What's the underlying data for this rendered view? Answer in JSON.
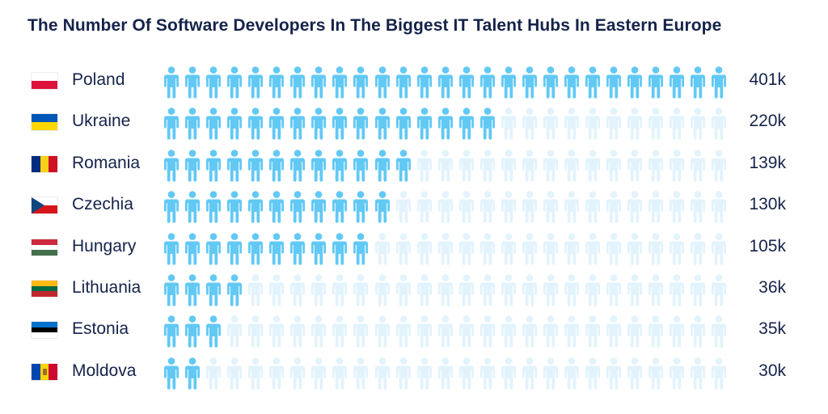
{
  "title": "The Number Of Software Developers In The Biggest IT Talent Hubs In Eastern Europe",
  "colors": {
    "active": "#62c9f5",
    "inactive": "#e2f3fc",
    "text": "#15234a"
  },
  "icons_per_row": 27,
  "chart_data": {
    "type": "bar",
    "title": "The Number Of Software Developers In The Biggest IT Talent Hubs In Eastern Europe",
    "categories": [
      "Poland",
      "Ukraine",
      "Romania",
      "Czechia",
      "Hungary",
      "Lithuania",
      "Estonia",
      "Moldova"
    ],
    "values": [
      401,
      220,
      139,
      130,
      105,
      36,
      35,
      30
    ],
    "value_labels": [
      "401k",
      "220k",
      "139k",
      "130k",
      "105k",
      "36k",
      "35k",
      "30k"
    ],
    "filled_icons": [
      27,
      16,
      12,
      11,
      10,
      4,
      3,
      2
    ],
    "xlabel": "",
    "ylabel": ""
  },
  "rows": [
    {
      "country": "Poland",
      "value": "401k",
      "filled": 27,
      "flag": "poland-flag-icon"
    },
    {
      "country": "Ukraine",
      "value": "220k",
      "filled": 16,
      "flag": "ukraine-flag-icon"
    },
    {
      "country": "Romania",
      "value": "139k",
      "filled": 12,
      "flag": "romania-flag-icon"
    },
    {
      "country": "Czechia",
      "value": "130k",
      "filled": 11,
      "flag": "czechia-flag-icon"
    },
    {
      "country": "Hungary",
      "value": "105k",
      "filled": 10,
      "flag": "hungary-flag-icon"
    },
    {
      "country": "Lithuania",
      "value": "36k",
      "filled": 4,
      "flag": "lithuania-flag-icon"
    },
    {
      "country": "Estonia",
      "value": "35k",
      "filled": 3,
      "flag": "estonia-flag-icon"
    },
    {
      "country": "Moldova",
      "value": "30k",
      "filled": 2,
      "flag": "moldova-flag-icon"
    }
  ]
}
